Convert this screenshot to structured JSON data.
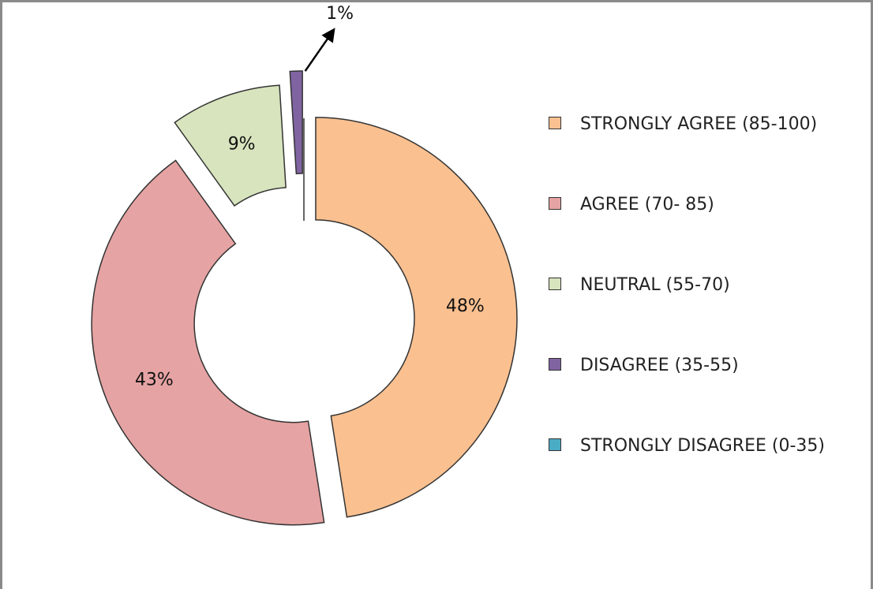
{
  "chart_data": {
    "type": "donut",
    "categories": [
      "STRONGLY AGREE (85-100)",
      "AGREE (70- 85)",
      "NEUTRAL (55-70)",
      "DISAGREE (35-55)",
      "STRONGLY DISAGREE (0-35)"
    ],
    "values": [
      48,
      43,
      9,
      1,
      0
    ],
    "value_labels": [
      "48%",
      "43%",
      "9%",
      "1%",
      null
    ],
    "colors": [
      "#fac090",
      "#e6a3a3",
      "#d7e4bd",
      "#8064a2",
      "#4bacc6"
    ],
    "legend": "right"
  }
}
